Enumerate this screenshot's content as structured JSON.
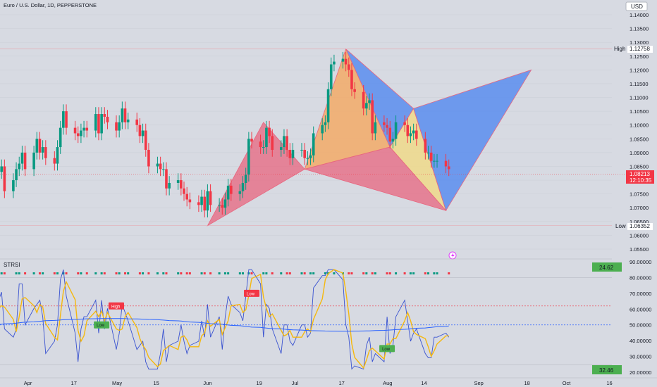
{
  "header": {
    "symbol_title": "Euro / U.S. Dollar, 1D, PEPPERSTONE",
    "currency": "USD"
  },
  "price_axis": {
    "ticks": [
      "1.14000",
      "1.13500",
      "1.13000",
      "1.12500",
      "1.12000",
      "1.11500",
      "1.11000",
      "1.10500",
      "1.10000",
      "1.09500",
      "1.09000",
      "1.08500",
      "1.08000",
      "1.07500",
      "1.07000",
      "1.06500",
      "1.06000",
      "1.05500"
    ],
    "high": {
      "label": "High",
      "value": "1.12758"
    },
    "low": {
      "label": "Low",
      "value": "1.06352"
    },
    "last": {
      "value": "1.08213",
      "countdown": "12:10:35"
    }
  },
  "indicator": {
    "name": "STRSI",
    "ticks": [
      "90.00000",
      "80.00000",
      "70.00000",
      "60.00000",
      "50.00000",
      "40.00000",
      "30.00000",
      "20.00000"
    ],
    "top_value": "24.62",
    "bottom_value": "32.46",
    "signals": [
      "High",
      "Low",
      "Low",
      "Low"
    ]
  },
  "time_axis": {
    "ticks": [
      "Apr",
      "17",
      "May",
      "15",
      "Jun",
      "19",
      "Jul",
      "17",
      "Aug",
      "14",
      "Sep",
      "18",
      "Oct",
      "16"
    ]
  },
  "colors": {
    "up": "#089981",
    "down": "#f23645",
    "bg": "#d7dae2",
    "pattern_pink": "#e8667f",
    "pattern_orange": "#f5a860",
    "pattern_blue": "#5b8def",
    "pattern_yellow": "#f0d98a",
    "rsi_blue": "#3a53d0",
    "ma_blue": "#2962ff",
    "fast_yellow": "#f5b80e",
    "fast_green": "#4caf50"
  },
  "chart_data": {
    "type": "candlestick",
    "y_range": [
      1.051,
      1.1425
    ],
    "days": [
      "2023-03-21",
      "2023-03-22",
      "2023-03-23",
      "2023-03-24",
      "2023-03-27",
      "2023-03-28",
      "2023-03-29",
      "2023-03-30",
      "2023-03-31",
      "2023-04-03",
      "2023-04-04",
      "2023-04-05",
      "2023-04-06",
      "2023-04-07",
      "2023-04-10",
      "2023-04-11",
      "2023-04-12",
      "2023-04-13",
      "2023-04-14",
      "2023-04-17",
      "2023-04-18",
      "2023-04-19",
      "2023-04-20",
      "2023-04-21",
      "2023-04-24",
      "2023-04-25",
      "2023-04-26",
      "2023-04-27",
      "2023-04-28",
      "2023-05-01",
      "2023-05-02",
      "2023-05-03",
      "2023-05-04",
      "2023-05-05",
      "2023-05-08",
      "2023-05-09",
      "2023-05-10",
      "2023-05-11",
      "2023-05-12",
      "2023-05-15",
      "2023-05-16",
      "2023-05-17",
      "2023-05-18",
      "2023-05-19",
      "2023-05-22",
      "2023-05-23",
      "2023-05-24",
      "2023-05-25",
      "2023-05-26",
      "2023-05-29",
      "2023-05-30",
      "2023-05-31",
      "2023-06-01",
      "2023-06-02",
      "2023-06-05",
      "2023-06-06",
      "2023-06-07",
      "2023-06-08",
      "2023-06-09",
      "2023-06-12",
      "2023-06-13",
      "2023-06-14",
      "2023-06-15",
      "2023-06-16",
      "2023-06-19",
      "2023-06-20",
      "2023-06-21",
      "2023-06-22",
      "2023-06-23",
      "2023-06-26",
      "2023-06-27",
      "2023-06-28",
      "2023-06-29",
      "2023-06-30",
      "2023-07-03",
      "2023-07-04",
      "2023-07-05",
      "2023-07-06",
      "2023-07-07",
      "2023-07-10",
      "2023-07-11",
      "2023-07-12",
      "2023-07-13",
      "2023-07-14",
      "2023-07-17",
      "2023-07-18",
      "2023-07-19",
      "2023-07-20",
      "2023-07-21",
      "2023-07-24",
      "2023-07-25",
      "2023-07-26",
      "2023-07-27",
      "2023-07-28",
      "2023-07-31",
      "2023-08-01",
      "2023-08-02",
      "2023-08-03",
      "2023-08-04",
      "2023-08-07",
      "2023-08-08",
      "2023-08-09",
      "2023-08-10",
      "2023-08-11",
      "2023-08-14",
      "2023-08-15",
      "2023-08-16",
      "2023-08-17",
      "2023-08-18",
      "2023-08-21",
      "2023-08-22"
    ],
    "closes": [
      1.077,
      1.083,
      1.085,
      1.076,
      1.08,
      1.084,
      1.086,
      1.09,
      1.084,
      1.09,
      1.095,
      1.09,
      1.092,
      1.088,
      1.086,
      1.092,
      1.099,
      1.105,
      1.099,
      1.097,
      1.096,
      1.098,
      1.099,
      1.098,
      1.104,
      1.097,
      1.104,
      1.103,
      1.101,
      1.098,
      1.101,
      1.106,
      1.101,
      1.102,
      1.1,
      1.096,
      1.098,
      1.091,
      1.085,
      1.086,
      1.084,
      1.084,
      1.077,
      1.079,
      1.08,
      1.077,
      1.075,
      1.073,
      1.072,
      1.071,
      1.074,
      1.069,
      1.076,
      1.071,
      1.071,
      1.07,
      1.073,
      1.078,
      1.075,
      1.076,
      1.079,
      1.082,
      1.095,
      1.094,
      1.092,
      1.092,
      1.099,
      1.096,
      1.091,
      1.092,
      1.096,
      1.091,
      1.088,
      1.091,
      1.091,
      1.088,
      1.088,
      1.089,
      1.097,
      1.1,
      1.101,
      1.113,
      1.122,
      1.123,
      1.124,
      1.122,
      1.12,
      1.113,
      1.112,
      1.106,
      1.108,
      1.109,
      1.097,
      1.101,
      1.1,
      1.099,
      1.094,
      1.095,
      1.101,
      1.1,
      1.096,
      1.097,
      1.098,
      1.095,
      1.09,
      1.09,
      1.087,
      1.087,
      1.087,
      1.085,
      1.084
    ],
    "x_ticks": [
      "Apr",
      "17",
      "May",
      "15",
      "Jun",
      "19",
      "Jul",
      "17",
      "Aug",
      "14",
      "Sep",
      "18",
      "Oct",
      "16"
    ],
    "harmonic_patterns": [
      {
        "name": "pattern-1",
        "points": [
          [
            "2023-06-01",
            1.0635
          ],
          [
            "2023-06-20",
            1.101
          ],
          [
            "2023-07-04",
            1.084
          ]
        ]
      },
      {
        "name": "pattern-2",
        "points": [
          [
            "2023-07-04",
            1.084
          ],
          [
            "2023-07-18",
            1.1276
          ],
          [
            "2023-08-02",
            1.092
          ],
          [
            "2023-08-21",
            1.069
          ]
        ]
      },
      {
        "name": "pattern-3",
        "points": [
          [
            "2023-07-18",
            1.1276
          ],
          [
            "2023-08-10",
            1.106
          ],
          [
            "2023-08-21",
            1.069
          ],
          [
            "2023-09-19",
            1.12
          ]
        ]
      }
    ],
    "rsi": {
      "ticks": [
        90,
        80,
        70,
        60,
        50,
        40,
        30,
        20
      ],
      "y_range": [
        18,
        93
      ],
      "ma_level": 50,
      "upper_dotted": 62,
      "overbought": 80,
      "oversold": 24.62
    }
  }
}
